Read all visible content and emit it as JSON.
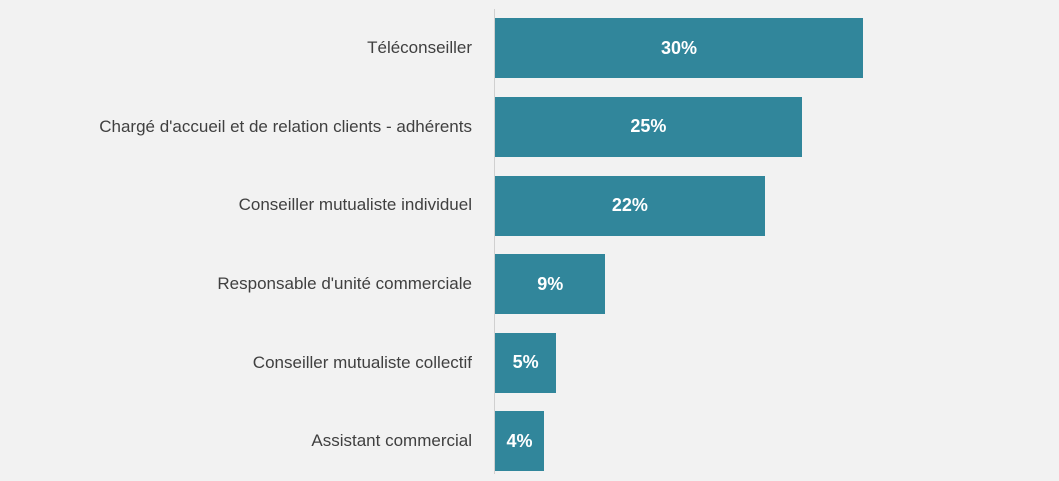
{
  "chart_data": {
    "type": "bar",
    "orientation": "horizontal",
    "categories": [
      "Téléconseiller",
      "Chargé d'accueil et de relation clients - adhérents",
      "Conseiller mutualiste individuel",
      "Responsable d'unité commerciale",
      "Conseiller mutualiste collectif",
      "Assistant commercial"
    ],
    "values": [
      30,
      25,
      22,
      9,
      5,
      4
    ],
    "value_labels": [
      "30%",
      "25%",
      "22%",
      "9%",
      "5%",
      "4%"
    ],
    "color": "#31869b"
  }
}
